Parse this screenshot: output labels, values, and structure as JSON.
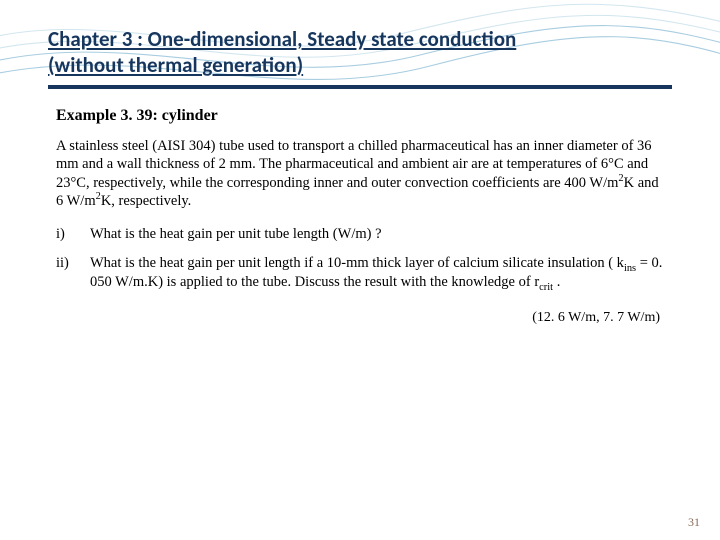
{
  "colors": {
    "title_color": "#17365d",
    "rule_color": "#17365d",
    "wave_stroke": "#a8cde0",
    "wave_stroke_light": "#d2e6ef",
    "background": "#ffffff",
    "page_num_color": "#8a6a5a"
  },
  "chapter": {
    "title_line1": "Chapter 3 : One-dimensional, Steady state conduction",
    "title_line2": "(without thermal generation)",
    "title_fontsize": 21,
    "title_font": "Calibri"
  },
  "example": {
    "heading": "Example 3. 39: cylinder",
    "body_html": "A stainless steel (AISI 304) tube used to transport  a chilled pharmaceutical has an inner diameter of 36 mm and a wall thickness of 2 mm. The pharmaceutical and ambient air are at temperatures of 6°C and 23°C, respectively, while the corresponding inner and outer convection coefficients are 400 W/m<span class=\"sup\">2</span>K and 6 W/m<span class=\"sup\">2</span>K, respectively.",
    "body_fontsize": 14.5,
    "body_font": "Georgia"
  },
  "questions": [
    {
      "marker": "i)",
      "text_html": "What is the heat gain per unit tube length (W/m) ?"
    },
    {
      "marker": "ii)",
      "text_html": "What is the heat gain per unit length if a 10-mm thick layer of calcium silicate insulation ( k<span class=\"sub\">ins</span> = 0. 050 W/m.K) is applied to the tube. Discuss the result with the knowledge  of r<span class=\"sub\">crit</span> ."
    }
  ],
  "answers": "(12. 6 W/m, 7. 7 W/m)",
  "page_number": "31",
  "wave": {
    "paths": [
      "M -40 70 C 120 20, 260 95, 420 55 S 640 15, 780 60",
      "M -40 58 C 110 10, 250 85, 410 45 S 630 5, 780 48",
      "M -40 82 C 130 34, 270 108, 430 66 S 650 28, 780 72",
      "M -40 46 C 100 -2, 240 74, 400 34 S 620 -6, 780 36"
    ],
    "stroke_width": 1.1
  }
}
